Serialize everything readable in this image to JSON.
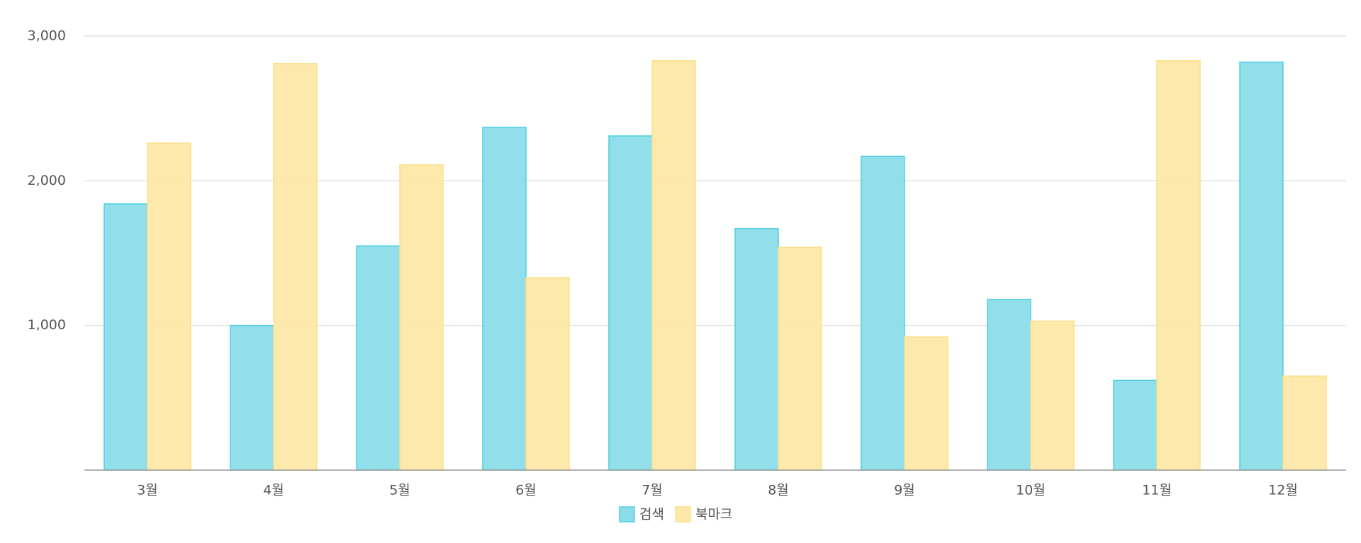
{
  "chart_data": {
    "type": "bar",
    "categories": [
      "3월",
      "4월",
      "5월",
      "6월",
      "7월",
      "8월",
      "9월",
      "10월",
      "11월",
      "12월"
    ],
    "series": [
      {
        "name": "검색",
        "color": "#8adde9",
        "values": [
          1840,
          1000,
          1550,
          2370,
          2310,
          1670,
          2170,
          1180,
          620,
          2820
        ]
      },
      {
        "name": "북마크",
        "color": "#fde8a8",
        "values": [
          2260,
          2810,
          2110,
          1330,
          2830,
          1540,
          920,
          1030,
          2830,
          650
        ]
      }
    ],
    "ylim": [
      0,
      3000
    ],
    "yticks": [
      {
        "value": 1000,
        "label": "1,000"
      },
      {
        "value": 2000,
        "label": "2,000"
      },
      {
        "value": 3000,
        "label": "3,000"
      }
    ],
    "grid": true
  }
}
